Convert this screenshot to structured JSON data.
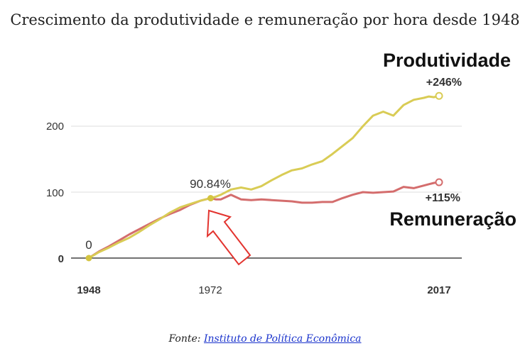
{
  "chart_data": {
    "type": "line",
    "title": "Crescimento da produtividade e remuneração por hora desde 1948",
    "x_tick_labels": [
      "1948",
      "1972",
      "2017"
    ],
    "y_tick_labels": [
      "0",
      "100",
      "200"
    ],
    "x_range": [
      1948,
      2017
    ],
    "ylim": [
      -2,
      270
    ],
    "grid": true,
    "series": [
      {
        "name": "Produtividade",
        "color": "#d9cc55",
        "end_label": "+246%",
        "x": [
          1948,
          1950,
          1952,
          1954,
          1956,
          1958,
          1960,
          1962,
          1964,
          1966,
          1968,
          1970,
          1972,
          1973,
          1974,
          1976,
          1978,
          1980,
          1982,
          1984,
          1986,
          1988,
          1990,
          1992,
          1994,
          1996,
          1998,
          2000,
          2002,
          2004,
          2006,
          2008,
          2010,
          2012,
          2014,
          2015,
          2016,
          2017
        ],
        "values": [
          0,
          9,
          16,
          24,
          31,
          40,
          50,
          59,
          69,
          77,
          82,
          87,
          91,
          93,
          96,
          104,
          107,
          104,
          109,
          118,
          126,
          133,
          136,
          142,
          147,
          158,
          170,
          182,
          200,
          216,
          222,
          216,
          232,
          240,
          243,
          245,
          244,
          246
        ]
      },
      {
        "name": "Remuneração",
        "color": "#d46d6d",
        "end_label": "+115%",
        "x": [
          1948,
          1950,
          1952,
          1954,
          1956,
          1958,
          1960,
          1962,
          1964,
          1966,
          1968,
          1970,
          1972,
          1973,
          1974,
          1976,
          1978,
          1980,
          1982,
          1984,
          1986,
          1988,
          1990,
          1992,
          1994,
          1996,
          1998,
          2000,
          2002,
          2004,
          2006,
          2008,
          2010,
          2012,
          2014,
          2015,
          2016,
          2017
        ],
        "values": [
          0,
          10,
          18,
          27,
          36,
          44,
          52,
          60,
          67,
          73,
          81,
          87,
          91,
          89,
          89,
          96,
          89,
          88,
          89,
          88,
          87,
          86,
          84,
          84,
          85,
          85,
          91,
          96,
          100,
          99,
          100,
          101,
          108,
          106,
          110,
          112,
          114,
          115
        ]
      }
    ],
    "annotations": [
      {
        "text": "0",
        "x": 1948,
        "y": 0
      },
      {
        "text": "90.84%",
        "x": 1972,
        "y": 90.84
      }
    ]
  },
  "source": {
    "prefix": "Fonte: ",
    "link_text": "Instituto de Política Econômica"
  }
}
